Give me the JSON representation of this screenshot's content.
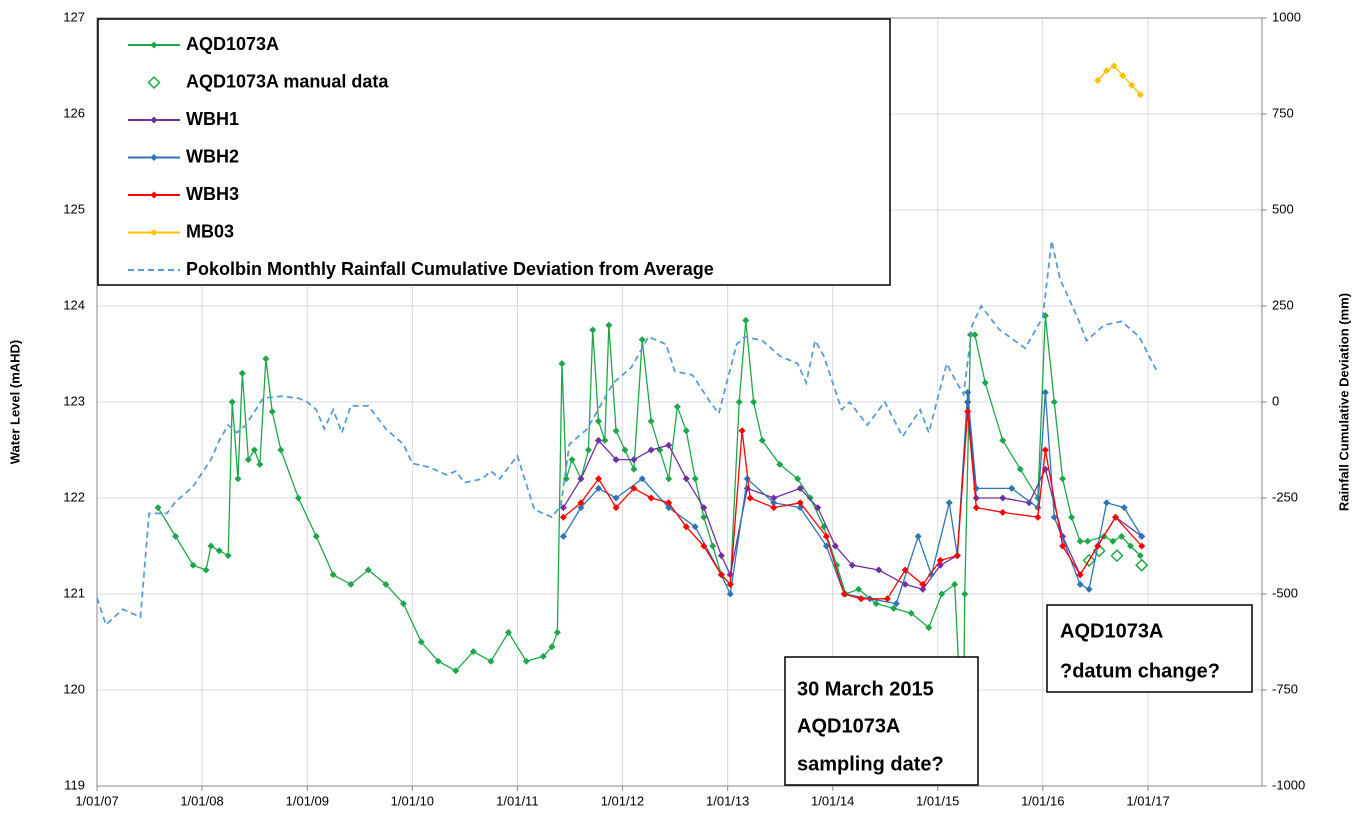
{
  "chart_data": {
    "type": "line",
    "y_label": "Water Level (mAHD)",
    "y2_label": "Rainfall Cumulative Deviation (mm)",
    "xlim": [
      "2007-01-01",
      "2018-02-01"
    ],
    "xticks": [
      {
        "value": "2007-01-01",
        "label": "1/01/07"
      },
      {
        "value": "2008-01-01",
        "label": "1/01/08"
      },
      {
        "value": "2009-01-01",
        "label": "1/01/09"
      },
      {
        "value": "2010-01-01",
        "label": "1/01/10"
      },
      {
        "value": "2011-01-01",
        "label": "1/01/11"
      },
      {
        "value": "2012-01-01",
        "label": "1/01/12"
      },
      {
        "value": "2013-01-01",
        "label": "1/01/13"
      },
      {
        "value": "2014-01-01",
        "label": "1/01/14"
      },
      {
        "value": "2015-01-01",
        "label": "1/01/15"
      },
      {
        "value": "2016-01-01",
        "label": "1/01/16"
      },
      {
        "value": "2017-01-01",
        "label": "1/01/17"
      }
    ],
    "ylim": [
      119,
      127
    ],
    "yticks": [
      119,
      120,
      121,
      122,
      123,
      124,
      125,
      126,
      127
    ],
    "y2lim": [
      -1000,
      1000
    ],
    "y2ticks": [
      -1000,
      -750,
      -500,
      -250,
      0,
      250,
      500,
      750,
      1000
    ],
    "grid": true,
    "legend": "upper left",
    "series": [
      {
        "name": "AQD1073A",
        "color": "#1fa64a",
        "marker": "diamond",
        "line": "solid",
        "x": [
          "2007-08-01",
          "2007-10-01",
          "2007-12-01",
          "2008-01-15",
          "2008-02-01",
          "2008-03-01",
          "2008-04-01",
          "2008-04-15",
          "2008-05-05",
          "2008-05-20",
          "2008-06-10",
          "2008-07-01",
          "2008-07-20",
          "2008-08-10",
          "2008-09-01",
          "2008-10-01",
          "2008-12-01",
          "2009-02-01",
          "2009-04-01",
          "2009-06-01",
          "2009-08-01",
          "2009-10-01",
          "2009-12-01",
          "2010-02-01",
          "2010-04-01",
          "2010-06-01",
          "2010-08-01",
          "2010-10-01",
          "2010-12-01",
          "2011-02-01",
          "2011-04-01",
          "2011-05-01",
          "2011-05-20",
          "2011-06-05",
          "2011-06-20",
          "2011-07-10",
          "2011-08-10",
          "2011-09-05",
          "2011-09-20",
          "2011-10-10",
          "2011-11-01",
          "2011-11-15",
          "2011-12-10",
          "2012-01-10",
          "2012-02-10",
          "2012-03-10",
          "2012-04-10",
          "2012-05-10",
          "2012-06-10",
          "2012-07-10",
          "2012-08-10",
          "2012-09-10",
          "2012-10-10",
          "2012-11-10",
          "2012-12-10",
          "2013-01-10",
          "2013-02-10",
          "2013-03-05",
          "2013-04-01",
          "2013-05-01",
          "2013-07-01",
          "2013-09-01",
          "2013-10-15",
          "2013-12-01",
          "2014-01-15",
          "2014-02-15",
          "2014-04-01",
          "2014-06-01",
          "2014-08-01",
          "2014-10-01",
          "2014-12-01",
          "2015-01-15",
          "2015-03-01",
          "2015-03-30",
          "2015-04-05",
          "2015-04-25",
          "2015-05-10",
          "2015-06-15",
          "2015-08-15",
          "2015-10-15",
          "2015-12-15",
          "2016-01-10",
          "2016-02-10",
          "2016-03-10",
          "2016-04-10",
          "2016-05-10",
          "2016-06-05",
          "2016-08-01",
          "2016-09-01",
          "2016-10-01",
          "2016-11-01",
          "2016-12-05"
        ],
        "values": [
          121.9,
          121.6,
          121.3,
          121.25,
          121.5,
          121.45,
          121.4,
          123.0,
          122.2,
          123.3,
          122.4,
          122.5,
          122.35,
          123.45,
          122.9,
          122.5,
          122.0,
          121.6,
          121.2,
          121.1,
          121.25,
          121.1,
          120.9,
          120.5,
          120.3,
          120.2,
          120.4,
          120.3,
          120.6,
          120.3,
          120.35,
          120.45,
          120.6,
          123.4,
          122.2,
          122.4,
          122.2,
          122.5,
          123.75,
          122.8,
          122.6,
          123.8,
          122.7,
          122.5,
          122.3,
          123.65,
          122.8,
          122.5,
          122.2,
          122.95,
          122.7,
          122.2,
          121.8,
          121.5,
          121.2,
          121.1,
          123.0,
          123.85,
          123.0,
          122.6,
          122.35,
          122.2,
          122.0,
          121.7,
          121.3,
          121.0,
          121.05,
          120.9,
          120.85,
          120.8,
          120.65,
          121.0,
          121.1,
          119.3,
          121.0,
          123.7,
          123.7,
          123.2,
          122.6,
          122.3,
          122.0,
          123.9,
          123.0,
          122.2,
          121.8,
          121.55,
          121.55,
          121.6,
          121.55,
          121.6,
          121.5,
          121.4
        ]
      },
      {
        "name": "AQD1073A manual data",
        "color": "#1fa64a",
        "marker": "open-diamond",
        "line": "none",
        "x": [
          "2016-06-10",
          "2016-07-15",
          "2016-09-15",
          "2016-12-10"
        ],
        "values": [
          121.35,
          121.45,
          121.4,
          121.3
        ]
      },
      {
        "name": "WBH1",
        "color": "#7030a0",
        "marker": "diamond",
        "line": "solid",
        "x": [
          "2011-06-10",
          "2011-08-10",
          "2011-10-10",
          "2011-12-10",
          "2012-02-10",
          "2012-04-10",
          "2012-06-10",
          "2012-08-10",
          "2012-10-10",
          "2012-12-10",
          "2013-01-10",
          "2013-03-10",
          "2013-06-10",
          "2013-09-10",
          "2013-11-10",
          "2014-01-10",
          "2014-03-10",
          "2014-06-10",
          "2014-09-10",
          "2014-11-10",
          "2015-01-10",
          "2015-03-10",
          "2015-04-15",
          "2015-05-15",
          "2015-08-15",
          "2015-11-15",
          "2016-01-10",
          "2016-03-10",
          "2016-05-10",
          "2016-07-10",
          "2016-09-10",
          "2016-12-10"
        ],
        "values": [
          121.9,
          122.2,
          122.6,
          122.4,
          122.4,
          122.5,
          122.55,
          122.2,
          121.9,
          121.4,
          121.2,
          122.1,
          122.0,
          122.1,
          121.9,
          121.5,
          121.3,
          121.25,
          121.1,
          121.05,
          121.3,
          121.4,
          123.0,
          122.0,
          122.0,
          121.95,
          122.3,
          121.6,
          121.2,
          121.5,
          121.8,
          121.6
        ]
      },
      {
        "name": "WBH2",
        "color": "#2e75b6",
        "marker": "diamond",
        "line": "solid",
        "x": [
          "2011-06-10",
          "2011-08-10",
          "2011-10-10",
          "2011-12-10",
          "2012-03-10",
          "2012-06-10",
          "2012-09-10",
          "2012-12-10",
          "2013-01-10",
          "2013-03-10",
          "2013-06-10",
          "2013-09-10",
          "2013-12-10",
          "2014-02-10",
          "2014-05-10",
          "2014-08-10",
          "2014-10-25",
          "2014-12-10",
          "2015-02-10",
          "2015-03-10",
          "2015-04-15",
          "2015-05-15",
          "2015-09-15",
          "2015-12-15",
          "2016-01-10",
          "2016-02-10",
          "2016-05-10",
          "2016-06-10",
          "2016-08-10",
          "2016-10-10",
          "2016-12-10"
        ],
        "values": [
          121.6,
          121.9,
          122.1,
          122.0,
          122.2,
          121.9,
          121.7,
          121.2,
          121.0,
          122.2,
          121.95,
          121.9,
          121.5,
          121.0,
          120.95,
          120.9,
          121.6,
          121.2,
          121.95,
          121.4,
          123.1,
          122.1,
          122.1,
          121.9,
          123.1,
          121.8,
          121.1,
          121.05,
          121.95,
          121.9,
          121.6
        ]
      },
      {
        "name": "WBH3",
        "color": "#ff0000",
        "marker": "diamond",
        "line": "solid",
        "x": [
          "2011-06-10",
          "2011-08-10",
          "2011-10-10",
          "2011-12-10",
          "2012-02-10",
          "2012-04-10",
          "2012-06-10",
          "2012-08-10",
          "2012-10-10",
          "2012-12-10",
          "2013-01-10",
          "2013-02-20",
          "2013-03-20",
          "2013-06-10",
          "2013-09-10",
          "2013-12-10",
          "2014-02-10",
          "2014-04-10",
          "2014-07-10",
          "2014-09-10",
          "2014-11-10",
          "2015-01-10",
          "2015-03-10",
          "2015-04-15",
          "2015-05-15",
          "2015-08-15",
          "2015-12-15",
          "2016-01-10",
          "2016-03-10",
          "2016-05-10",
          "2016-07-10",
          "2016-09-10",
          "2016-12-10"
        ],
        "values": [
          121.8,
          121.95,
          122.2,
          121.9,
          122.1,
          122.0,
          121.95,
          121.7,
          121.5,
          121.2,
          121.1,
          122.7,
          122.0,
          121.9,
          121.95,
          121.6,
          121.0,
          120.95,
          120.95,
          121.25,
          121.1,
          121.35,
          121.4,
          122.9,
          121.9,
          121.85,
          121.8,
          122.5,
          121.5,
          121.2,
          121.5,
          121.8,
          121.5
        ]
      },
      {
        "name": "MB03",
        "color": "#ffc000",
        "marker": "diamond",
        "line": "solid",
        "x": [
          "2016-07-10",
          "2016-08-10",
          "2016-09-05",
          "2016-10-05",
          "2016-11-05",
          "2016-12-05"
        ],
        "values": [
          126.35,
          126.45,
          126.5,
          126.4,
          126.3,
          126.2
        ]
      },
      {
        "name": "Pokolbin Monthly Rainfall Cumulative Deviation from Average",
        "color": "#5b9bd5",
        "marker": "none",
        "line": "dashed",
        "axis": "y2",
        "x": [
          "2007-01-01",
          "2007-02-01",
          "2007-04-01",
          "2007-06-01",
          "2007-07-01",
          "2007-09-01",
          "2007-10-01",
          "2007-12-01",
          "2008-02-01",
          "2008-03-01",
          "2008-04-01",
          "2008-05-01",
          "2008-06-01",
          "2008-08-01",
          "2008-10-01",
          "2008-12-01",
          "2009-01-01",
          "2009-02-01",
          "2009-03-01",
          "2009-04-01",
          "2009-05-01",
          "2009-06-01",
          "2009-08-01",
          "2009-10-01",
          "2009-12-01",
          "2010-01-01",
          "2010-03-01",
          "2010-05-01",
          "2010-06-01",
          "2010-07-01",
          "2010-09-01",
          "2010-10-01",
          "2010-11-01",
          "2011-01-01",
          "2011-03-01",
          "2011-05-01",
          "2011-06-01",
          "2011-07-01",
          "2011-09-01",
          "2011-10-01",
          "2011-12-01",
          "2012-02-01",
          "2012-04-01",
          "2012-06-01",
          "2012-07-01",
          "2012-09-01",
          "2012-11-01",
          "2012-12-01",
          "2013-02-01",
          "2013-03-01",
          "2013-05-01",
          "2013-07-01",
          "2013-09-01",
          "2013-10-01",
          "2013-11-01",
          "2013-12-01",
          "2014-02-01",
          "2014-03-01",
          "2014-05-01",
          "2014-07-01",
          "2014-09-01",
          "2014-11-01",
          "2014-12-01",
          "2015-02-01",
          "2015-03-01",
          "2015-04-01",
          "2015-05-01",
          "2015-06-01",
          "2015-08-01",
          "2015-11-01",
          "2016-01-01",
          "2016-02-01",
          "2016-03-01",
          "2016-05-01",
          "2016-06-01",
          "2016-08-01",
          "2016-10-01",
          "2016-12-01",
          "2017-02-01"
        ],
        "values": [
          -510,
          -580,
          -540,
          -560,
          -290,
          -290,
          -260,
          -220,
          -150,
          -100,
          -60,
          -80,
          -60,
          10,
          15,
          10,
          0,
          -20,
          -70,
          -20,
          -80,
          -10,
          -10,
          -70,
          -110,
          -160,
          -170,
          -190,
          -180,
          -210,
          -200,
          -180,
          -200,
          -140,
          -280,
          -300,
          -270,
          -110,
          -70,
          -30,
          50,
          90,
          170,
          150,
          80,
          70,
          0,
          -30,
          150,
          170,
          160,
          120,
          100,
          50,
          160,
          120,
          -20,
          0,
          -60,
          0,
          -90,
          -20,
          -80,
          100,
          60,
          20,
          200,
          250,
          190,
          140,
          220,
          420,
          320,
          220,
          160,
          200,
          210,
          170,
          80
        ]
      }
    ],
    "annotations": [
      {
        "lines": [
          "30 March 2015",
          "AQD1073A",
          "sampling date?"
        ]
      },
      {
        "lines": [
          "AQD1073A",
          "?datum change?"
        ]
      }
    ]
  }
}
